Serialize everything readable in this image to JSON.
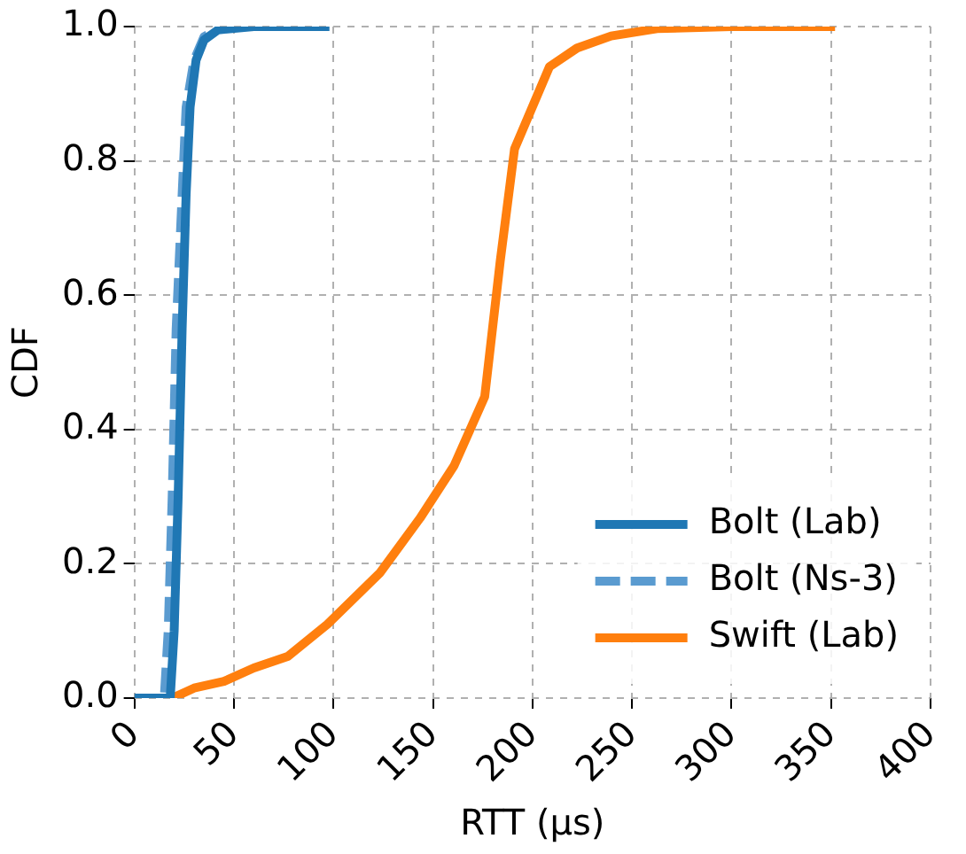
{
  "chart_data": {
    "type": "line",
    "xlabel": "RTT (μs)",
    "ylabel": "CDF",
    "xlim": [
      0,
      400
    ],
    "xticks": [
      0,
      50,
      100,
      150,
      200,
      250,
      300,
      350,
      400
    ],
    "ylim": [
      0,
      1
    ],
    "yticks": [
      {
        "value": 0,
        "label": "0.0"
      },
      {
        "value": 0.2,
        "label": "0.2"
      },
      {
        "value": 0.4,
        "label": "0.4"
      },
      {
        "value": 0.6,
        "label": "0.6"
      },
      {
        "value": 0.8,
        "label": "0.8"
      },
      {
        "value": 1,
        "label": "1.0"
      }
    ],
    "grid": true,
    "legend": "bottom right",
    "marker": "none",
    "series": [
      {
        "name": "Bolt (Lab)",
        "color": "#1f77b4",
        "line_style": "solid",
        "x": [
          0,
          18,
          20,
          22,
          24,
          26,
          28,
          31,
          35,
          42,
          60,
          98
        ],
        "values": [
          0,
          0,
          0.1,
          0.3,
          0.55,
          0.75,
          0.88,
          0.95,
          0.98,
          0.995,
          1,
          1
        ]
      },
      {
        "name": "Bolt (Ns-3)",
        "color": "#5a9bd0",
        "line_style": "dashed",
        "x": [
          0,
          15,
          17,
          19,
          21,
          24,
          26,
          30,
          35,
          45,
          50
        ],
        "values": [
          0,
          0,
          0.1,
          0.3,
          0.55,
          0.75,
          0.88,
          0.95,
          0.985,
          1,
          1
        ]
      },
      {
        "name": "Swift (Lab)",
        "color": "#ff7f0e",
        "line_style": "solid",
        "x": [
          0,
          19,
          30,
          45,
          60,
          77,
          97,
          123.5,
          143.5,
          160.6,
          176,
          183.8,
          191,
          208.5,
          222.4,
          239.5,
          262.6,
          300,
          352
        ],
        "values": [
          0,
          0,
          0.015,
          0.025,
          0.045,
          0.062,
          0.11,
          0.187,
          0.268,
          0.346,
          0.449,
          0.651,
          0.818,
          0.94,
          0.968,
          0.986,
          0.997,
          1,
          1
        ]
      }
    ]
  }
}
